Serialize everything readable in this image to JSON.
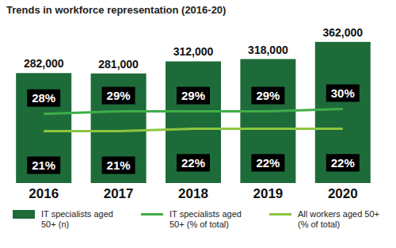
{
  "chart_data": {
    "type": "bar",
    "title": "Trends in workforce representation (2016-20)",
    "categories": [
      "2016",
      "2017",
      "2018",
      "2019",
      "2020"
    ],
    "series": [
      {
        "name": "IT specialists aged 50+ (n)",
        "type": "bar",
        "color": "#1e6b3a",
        "values": [
          282000,
          281000,
          312000,
          318000,
          362000
        ],
        "value_labels": [
          "282,000",
          "281,000",
          "312,000",
          "318,000",
          "362,000"
        ]
      },
      {
        "name": "IT specialists aged 50+ (% of total)",
        "type": "line",
        "color": "#3fae49",
        "axis": "y2",
        "values": [
          28,
          29,
          29,
          29,
          30
        ],
        "value_labels": [
          "28%",
          "29%",
          "29%",
          "29%",
          "30%"
        ]
      },
      {
        "name": "All workers aged 50+ (% of total)",
        "type": "line",
        "color": "#8dc63f",
        "axis": "y2",
        "values": [
          21,
          21,
          22,
          22,
          22
        ],
        "value_labels": [
          "21%",
          "21%",
          "22%",
          "22%",
          "22%"
        ]
      }
    ],
    "ylim": [
      0,
      380000
    ],
    "y2lim": [
      0,
      60
    ],
    "data_labels": true,
    "tick_labels": "x",
    "grid": false
  }
}
